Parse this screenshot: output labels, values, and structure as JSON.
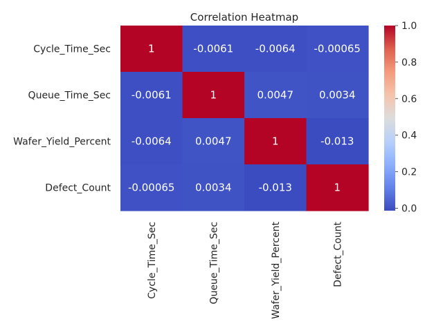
{
  "chart_data": {
    "type": "heatmap",
    "title": "Correlation Heatmap",
    "rows": [
      "Cycle_Time_Sec",
      "Queue_Time_Sec",
      "Wafer_Yield_Percent",
      "Defect_Count"
    ],
    "cols": [
      "Cycle_Time_Sec",
      "Queue_Time_Sec",
      "Wafer_Yield_Percent",
      "Defect_Count"
    ],
    "values": [
      [
        1,
        -0.0061,
        -0.0064,
        -0.00065
      ],
      [
        -0.0061,
        1,
        0.0047,
        0.0034
      ],
      [
        -0.0064,
        0.0047,
        1,
        -0.013
      ],
      [
        -0.00065,
        0.0034,
        -0.013,
        1
      ]
    ],
    "annotations": [
      [
        "1",
        "-0.0061",
        "-0.0064",
        "-0.00065"
      ],
      [
        "-0.0061",
        "1",
        "0.0047",
        "0.0034"
      ],
      [
        "-0.0064",
        "0.0047",
        "1",
        "-0.013"
      ],
      [
        "-0.00065",
        "0.0034",
        "-0.013",
        "1"
      ]
    ],
    "colormap": "coolwarm",
    "colorbar": {
      "range": [
        -0.013,
        1.0
      ],
      "ticks": [
        0.0,
        0.2,
        0.4,
        0.6,
        0.8,
        1.0
      ],
      "tick_labels": [
        "0.0",
        "0.2",
        "0.4",
        "0.6",
        "0.8",
        "1.0"
      ]
    },
    "annotation_colors": {
      "dark_cell_text": "#ffffff",
      "light_cell_text": "#262626"
    }
  }
}
